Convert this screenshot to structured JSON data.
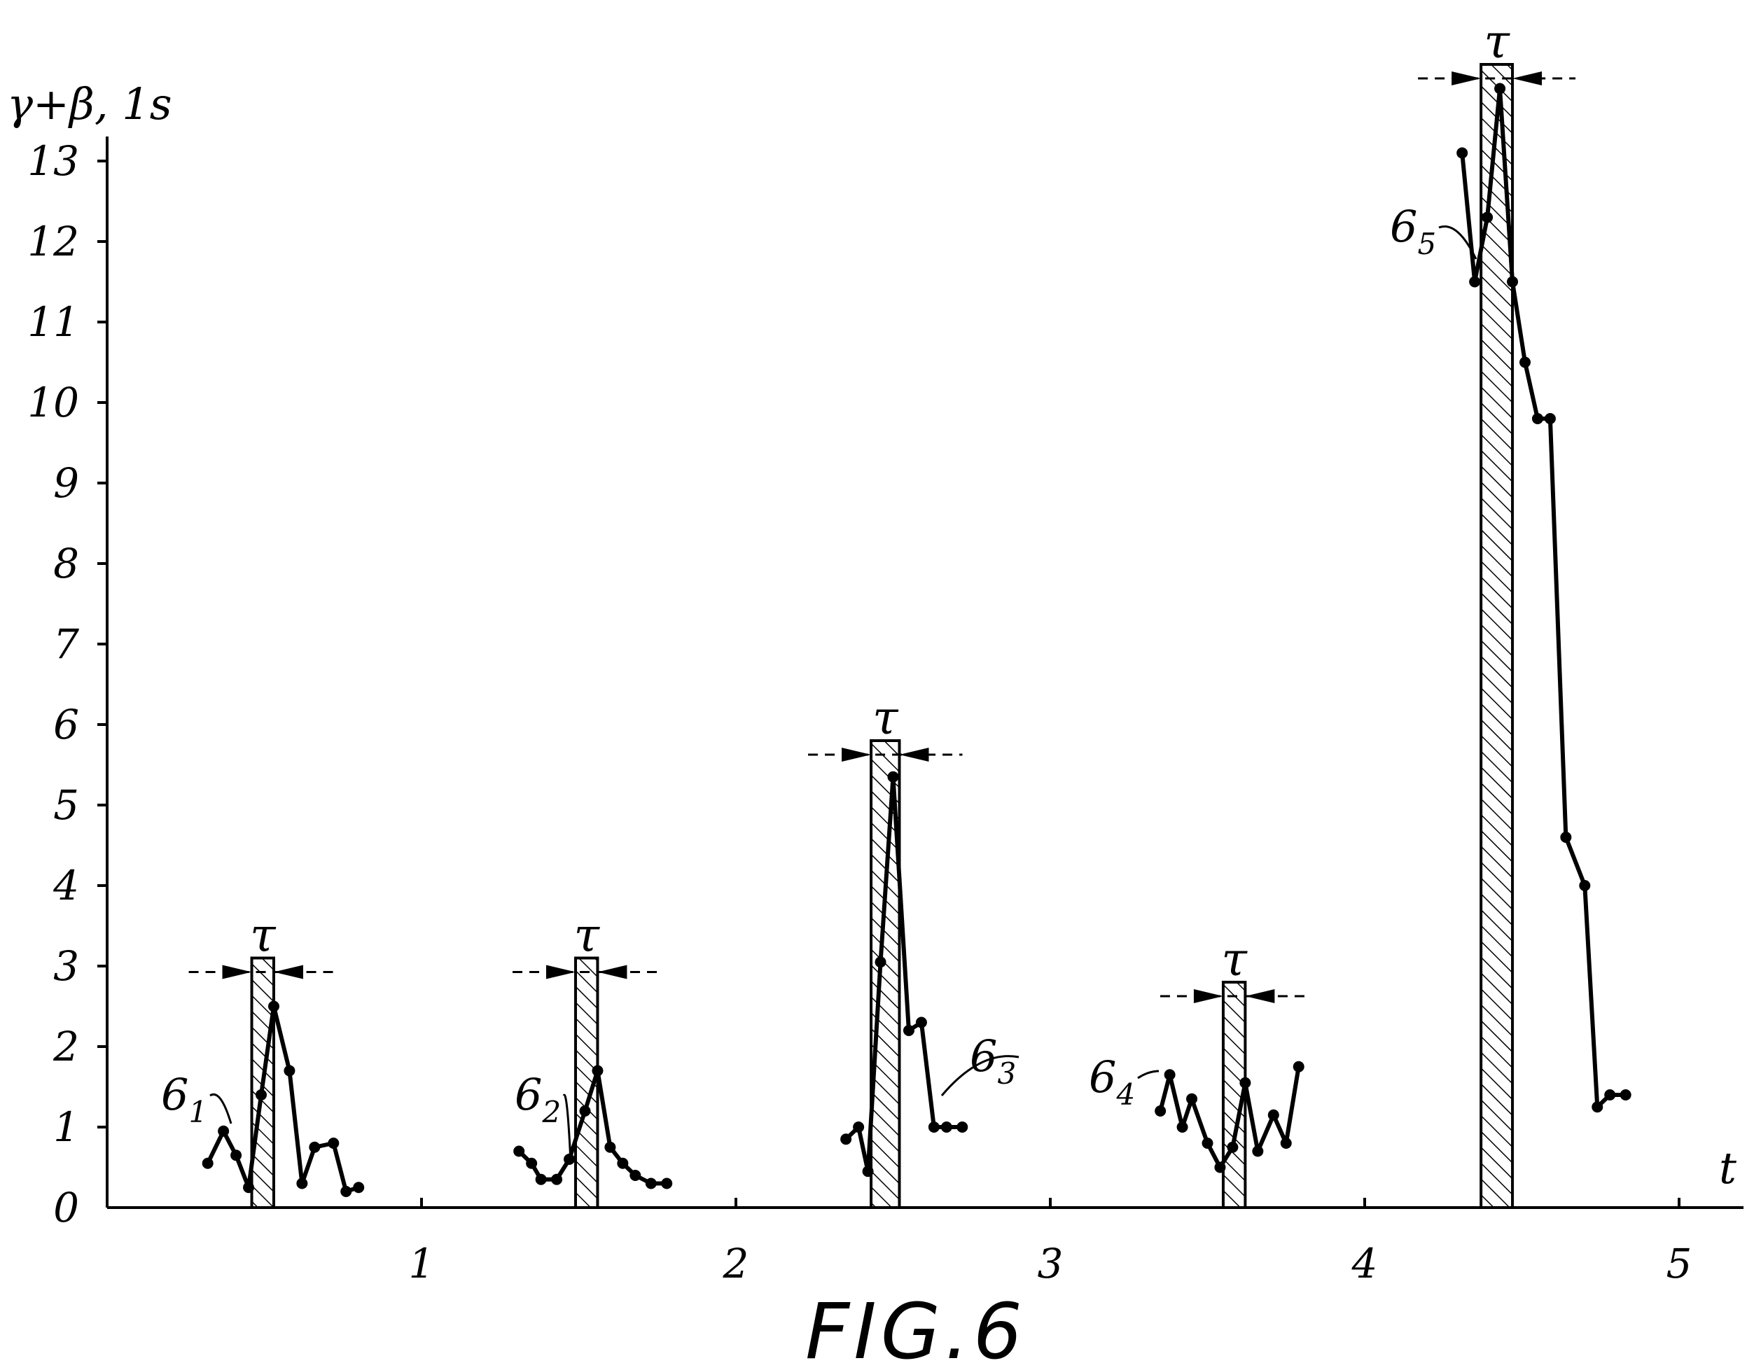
{
  "chart_data": {
    "type": "line",
    "title": "",
    "caption": "FIG.6",
    "xlabel": "t",
    "ylabel": "γ+β, 1s",
    "xlim": [
      0,
      5.2
    ],
    "ylim": [
      0,
      13.5
    ],
    "xticks": [
      1,
      2,
      3,
      4,
      5
    ],
    "yticks": [
      0,
      1,
      2,
      3,
      4,
      5,
      6,
      7,
      8,
      9,
      10,
      11,
      12,
      13
    ],
    "grid": false,
    "legend": "none",
    "pulse_label": "τ",
    "pulses": [
      {
        "x_start": 0.46,
        "x_end": 0.53,
        "top": 3.1
      },
      {
        "x_start": 1.49,
        "x_end": 1.56,
        "top": 3.1
      },
      {
        "x_start": 2.43,
        "x_end": 2.52,
        "top": 5.8
      },
      {
        "x_start": 3.55,
        "x_end": 3.62,
        "top": 2.8
      },
      {
        "x_start": 4.37,
        "x_end": 4.47,
        "top": 14.2
      }
    ],
    "series": [
      {
        "label": "6",
        "sub": "1",
        "x": [
          0.32,
          0.37,
          0.41,
          0.45,
          0.49,
          0.53,
          0.58,
          0.62,
          0.66,
          0.72,
          0.76,
          0.8
        ],
        "y": [
          0.55,
          0.95,
          0.65,
          0.25,
          1.4,
          2.5,
          1.7,
          0.3,
          0.75,
          0.8,
          0.2,
          0.25
        ]
      },
      {
        "label": "6",
        "sub": "2",
        "x": [
          1.31,
          1.35,
          1.38,
          1.43,
          1.47,
          1.52,
          1.56,
          1.6,
          1.64,
          1.68,
          1.73,
          1.78
        ],
        "y": [
          0.7,
          0.55,
          0.35,
          0.35,
          0.6,
          1.2,
          1.7,
          0.75,
          0.55,
          0.4,
          0.3,
          0.3
        ]
      },
      {
        "label": "6",
        "sub": "3",
        "x": [
          2.35,
          2.39,
          2.42,
          2.46,
          2.5,
          2.55,
          2.59,
          2.63,
          2.67,
          2.72
        ],
        "y": [
          0.85,
          1.0,
          0.45,
          3.05,
          5.35,
          2.2,
          2.3,
          1.0,
          1.0,
          1.0
        ]
      },
      {
        "label": "6",
        "sub": "4",
        "x": [
          3.35,
          3.38,
          3.42,
          3.45,
          3.5,
          3.54,
          3.58,
          3.62,
          3.66,
          3.71,
          3.75,
          3.79
        ],
        "y": [
          1.2,
          1.65,
          1.0,
          1.35,
          0.8,
          0.5,
          0.75,
          1.55,
          0.7,
          1.15,
          0.8,
          1.75
        ]
      },
      {
        "label": "6",
        "sub": "5",
        "x": [
          4.31,
          4.35,
          4.39,
          4.43,
          4.47,
          4.51,
          4.55,
          4.59,
          4.64,
          4.7,
          4.74,
          4.78,
          4.83
        ],
        "y": [
          13.1,
          11.5,
          12.3,
          13.9,
          11.5,
          10.5,
          9.8,
          9.8,
          4.6,
          4.0,
          1.25,
          1.4,
          1.4
        ]
      }
    ]
  }
}
